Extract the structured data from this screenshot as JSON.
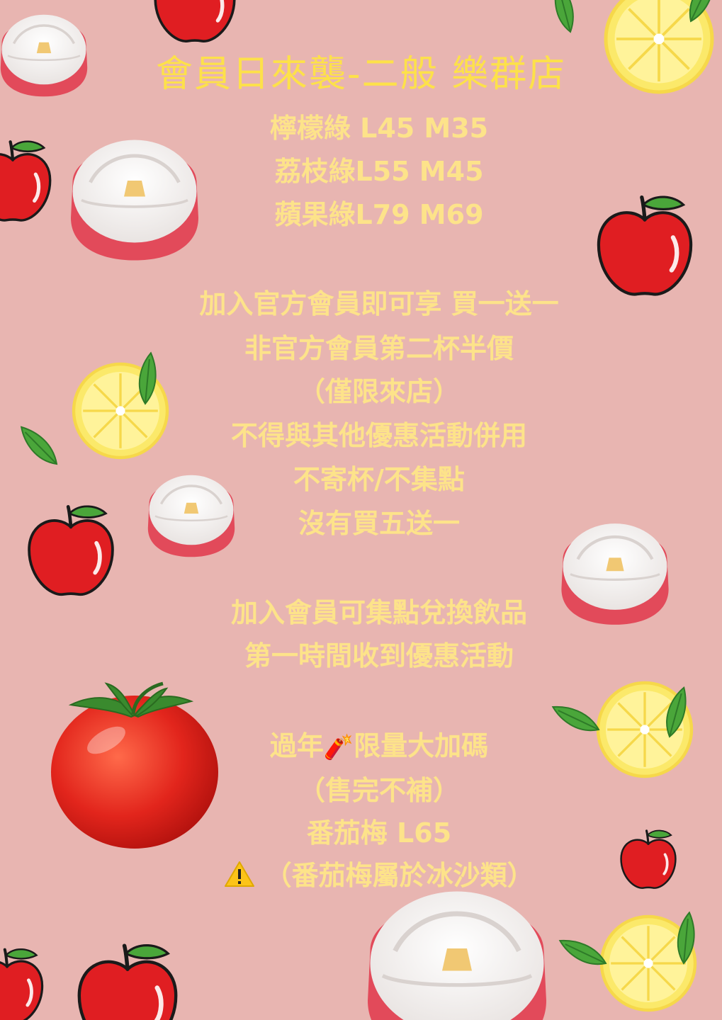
{
  "poster": {
    "title": "會員日來襲-二般  樂群店",
    "prices": [
      "檸檬綠 L45 M35",
      "荔枝綠L55 M45",
      "蘋果綠L79 M69"
    ],
    "offer": [
      "加入官方會員即可享 買一送一",
      "非官方會員第二杯半價",
      "（僅限來店）",
      "不得與其他優惠活動併用",
      "不寄杯/不集點",
      "沒有買五送一"
    ],
    "member": [
      "加入會員可集點兌換飲品",
      "第一時間收到優惠活動"
    ],
    "newyear": {
      "line1_before": "過年",
      "line1_emoji": "🧨",
      "line1_after": "限量大加碼",
      "line2": "（售完不補）",
      "line3": "番茄梅 L65",
      "warning_text": "（番茄梅屬於冰沙類）"
    }
  },
  "colors": {
    "background": "#e8b5b1",
    "title": "#fde14a",
    "body_text": "#fde38a",
    "apple_red": "#e01e22",
    "lemon_yellow": "#fbe96a",
    "leaf_green": "#4aa63a"
  },
  "decorations": [
    "apple-icon",
    "lemon-icon",
    "peach-icon",
    "tomato-icon"
  ]
}
